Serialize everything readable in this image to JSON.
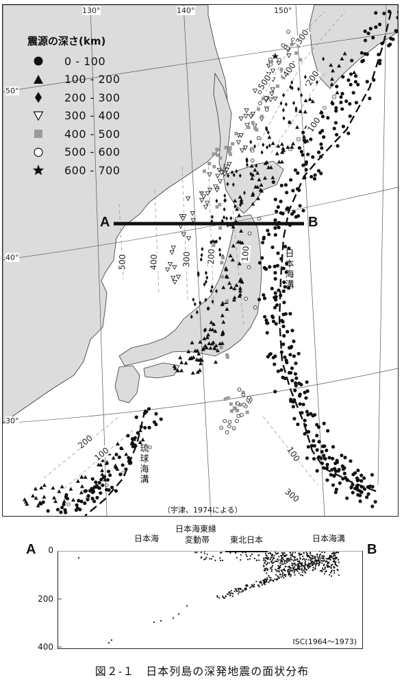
{
  "map": {
    "legend": {
      "title": "震源の深さ(km)",
      "items": [
        {
          "symbol": "filled-circle-icon",
          "label": "0 - 100"
        },
        {
          "symbol": "filled-triangle-icon",
          "label": "100 - 200"
        },
        {
          "symbol": "filled-diamond-icon",
          "label": "200 - 300"
        },
        {
          "symbol": "open-triangle-icon",
          "label": "300 - 400"
        },
        {
          "symbol": "gray-square-icon",
          "label": "400 - 500"
        },
        {
          "symbol": "open-circle-icon",
          "label": "500 - 600"
        },
        {
          "symbol": "filled-star-icon",
          "label": "600 - 700"
        }
      ]
    },
    "longitudes": [
      "130°",
      "140°",
      "150°"
    ],
    "latitudes": [
      "50°",
      "40°",
      "30°"
    ],
    "section_start": "A",
    "section_end": "B",
    "trench_label_japan": "日本海溝",
    "trench_label_ryukyu": "琉球海溝",
    "depth_contours": [
      "500",
      "400",
      "300",
      "200",
      "100",
      "500",
      "400",
      "300",
      "200",
      "100",
      "200",
      "100",
      "100",
      "300"
    ],
    "source_credit": "（宇津、1974による）"
  },
  "cross_section": {
    "left_label": "A",
    "right_label": "B",
    "y_ticks": [
      "0",
      "200",
      "400"
    ],
    "regions": {
      "sea_of_japan": "日本海",
      "deformation_zone_line1": "日本海東縁",
      "deformation_zone_line2": "変動帯",
      "ne_japan": "東北日本",
      "japan_trench": "日本海溝"
    },
    "data_source": "ISC(1964〜1973)"
  },
  "caption": "図２-１　日本列島の深発地震の面状分布",
  "colors": {
    "ink": "#111111",
    "land": "#dcdcdc",
    "gray_square": "#9a9a9a"
  }
}
